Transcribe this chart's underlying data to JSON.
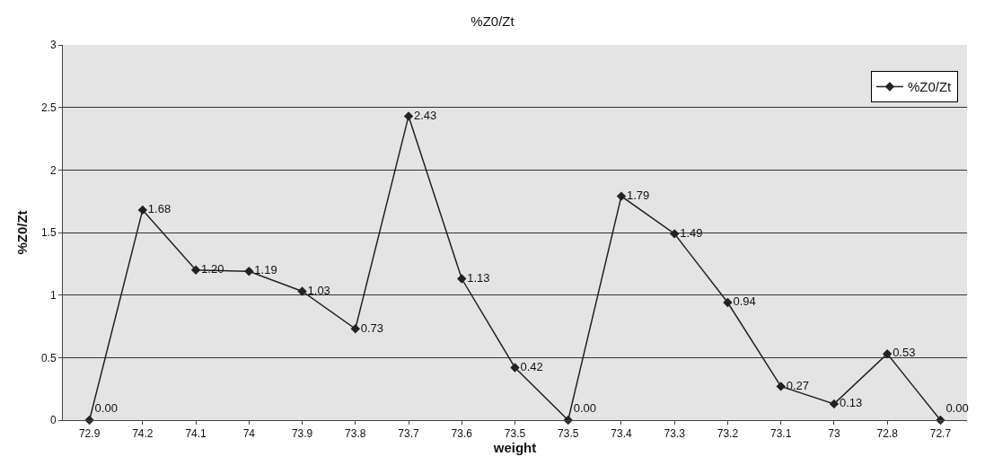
{
  "chart_data": {
    "type": "line",
    "title": "%Z0/Zt",
    "xlabel": "weight",
    "ylabel": "%Z0/Zt",
    "categories": [
      "72.9",
      "74.2",
      "74.1",
      "74",
      "73.9",
      "73.8",
      "73.7",
      "73.6",
      "73.5",
      "73.5",
      "73.4",
      "73.3",
      "73.2",
      "73.1",
      "73",
      "72.8",
      "72.7"
    ],
    "series": [
      {
        "name": "%Z0/Zt",
        "color": "#222222",
        "values": [
          0.0,
          1.68,
          1.2,
          1.19,
          1.03,
          0.73,
          2.43,
          1.13,
          0.42,
          0.0,
          1.79,
          1.49,
          0.94,
          0.27,
          0.13,
          0.53,
          0.0
        ],
        "value_labels": [
          "0.00",
          "1.68",
          "1.20",
          "1.19",
          "1.03",
          "0.73",
          "2.43",
          "1.13",
          "0.42",
          "0.00",
          "1.79",
          "1.49",
          "0.94",
          "0.27",
          "0.13",
          "0.53",
          "0.00"
        ]
      }
    ],
    "ylim": [
      0,
      3
    ],
    "yticks": [
      0,
      0.5,
      1,
      1.5,
      2,
      2.5,
      3
    ],
    "grid": "y",
    "legend": "top right",
    "marker": "diamond",
    "line_style": "solid"
  }
}
